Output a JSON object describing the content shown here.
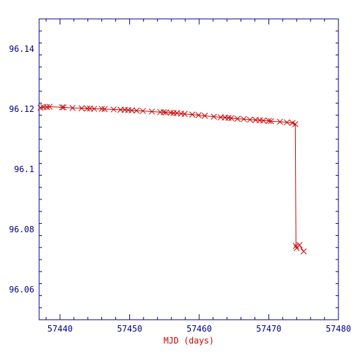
{
  "chart_data": {
    "type": "line",
    "title": "",
    "xlabel": "MJD (days)",
    "ylabel": "",
    "xlim": [
      57437,
      57480
    ],
    "ylim": [
      96.05,
      96.15
    ],
    "x_ticks": [
      57440,
      57450,
      57460,
      57470,
      57480
    ],
    "y_ticks": [
      96.06,
      96.08,
      96.1,
      96.12,
      96.14
    ],
    "x_tick_labels": [
      "57440",
      "57450",
      "57460",
      "57470",
      "57480"
    ],
    "y_tick_labels": [
      "96.06",
      "96.08",
      "96.1",
      "96.12",
      "96.14"
    ],
    "grid": false,
    "colors": {
      "axes": "#00007f",
      "tick_labels": "#00007f",
      "series": "#cc0000",
      "xlabel": "#cc0000"
    },
    "series": [
      {
        "marker": "x",
        "x": [
          57437.2,
          57437.6,
          57438.1,
          57438.5,
          57440.3,
          57440.5,
          57441.8,
          57443.1,
          57443.9,
          57444.3,
          57444.9,
          57446.0,
          57446.4,
          57447.7,
          57448.7,
          57449.3,
          57449.8,
          57450.3,
          57451.0,
          57451.9,
          57453.2,
          57454.4,
          57454.9,
          57455.2,
          57455.9,
          57456.3,
          57456.8,
          57457.4,
          57457.9,
          57459.0,
          57459.9,
          57460.8,
          57462.1,
          57463.1,
          57463.7,
          57464.2,
          57464.6,
          57465.5,
          57466.4,
          57467.3,
          57468.1,
          57468.7,
          57469.2,
          57470.0,
          57470.3,
          57471.6,
          57472.6,
          57473.4,
          57473.8,
          57473.9,
          57474.0,
          57474.4,
          57475.0
        ],
        "y": [
          96.1205,
          96.1207,
          96.1207,
          96.1208,
          96.1206,
          96.1206,
          96.1204,
          96.1203,
          96.1202,
          96.1202,
          96.1201,
          96.1201,
          96.12,
          96.1199,
          96.1198,
          96.1198,
          96.1197,
          96.1196,
          96.1195,
          96.1194,
          96.1192,
          96.119,
          96.119,
          96.1189,
          96.1188,
          96.1187,
          96.1187,
          96.1185,
          96.1184,
          96.1182,
          96.118,
          96.1178,
          96.1175,
          96.1173,
          96.1172,
          96.1171,
          96.117,
          96.1168,
          96.1167,
          96.1165,
          96.1164,
          96.1163,
          96.1162,
          96.1161,
          96.116,
          96.1158,
          96.1156,
          96.1154,
          96.115,
          96.0745,
          96.0738,
          96.0748,
          96.0727
        ]
      }
    ]
  }
}
